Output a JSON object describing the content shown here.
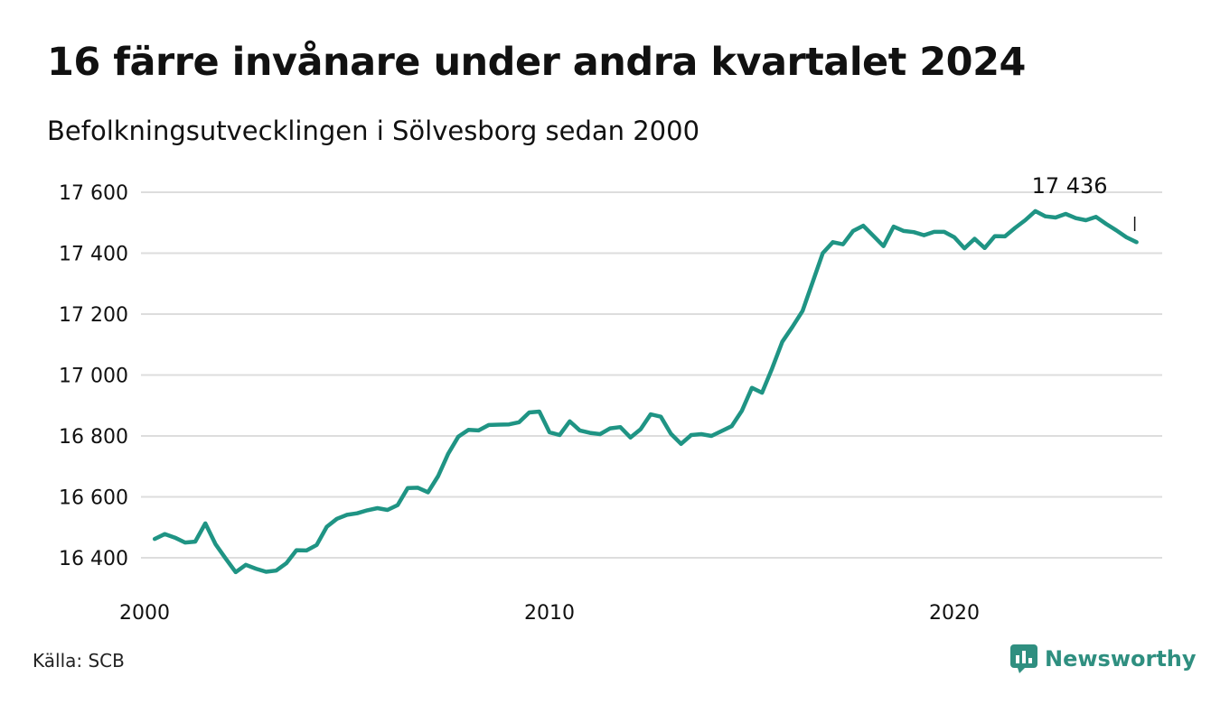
{
  "header": {
    "title": "16 färre invånare under andra kvartalet 2024",
    "subtitle": "Befolkningsutvecklingen i Sölvesborg sedan 2000"
  },
  "footer": {
    "source": "Källa: SCB",
    "brand": "Newsworthy"
  },
  "colors": {
    "line": "#1f9484",
    "grid": "#dddddd",
    "brand": "#2f8f80"
  },
  "chart_data": {
    "type": "line",
    "title": "16 färre invånare under andra kvartalet 2024",
    "subtitle": "Befolkningsutvecklingen i Sölvesborg sedan 2000",
    "xlim": [
      2000,
      2025
    ],
    "ylim": [
      16320,
      17620
    ],
    "x_ticks": [
      2000,
      2010,
      2020
    ],
    "x_tick_labels": [
      "2000",
      "2010",
      "2020"
    ],
    "y_ticks": [
      16400,
      16600,
      16800,
      17000,
      17200,
      17400,
      17600
    ],
    "y_tick_labels": [
      "16 400",
      "16 600",
      "16 800",
      "17 000",
      "17 200",
      "17 400",
      "17 600"
    ],
    "grid": true,
    "last_value_label": "17 436",
    "series": [
      {
        "x": [
          2000.25,
          2000.5,
          2000.75,
          2001.0,
          2001.25,
          2001.5,
          2001.75,
          2002.0,
          2002.25,
          2002.5,
          2002.75,
          2003.0,
          2003.25,
          2003.5,
          2003.75,
          2004.0,
          2004.25,
          2004.5,
          2004.75,
          2005.0,
          2005.25,
          2005.5,
          2005.75,
          2006.0,
          2006.25,
          2006.5,
          2006.75,
          2007.0,
          2007.25,
          2007.5,
          2007.75,
          2008.0,
          2008.25,
          2008.5,
          2008.75,
          2009.0,
          2009.25,
          2009.5,
          2009.75,
          2010.0,
          2010.25,
          2010.5,
          2010.75,
          2011.0,
          2011.25,
          2011.5,
          2011.75,
          2012.0,
          2012.25,
          2012.5,
          2012.75,
          2013.0,
          2013.25,
          2013.5,
          2013.75,
          2014.0,
          2014.25,
          2014.5,
          2014.75,
          2015.0,
          2015.25,
          2015.5,
          2015.75,
          2016.0,
          2016.25,
          2016.5,
          2016.75,
          2017.0,
          2017.25,
          2017.5,
          2017.75,
          2018.0,
          2018.25,
          2018.5,
          2018.75,
          2019.0,
          2019.25,
          2019.5,
          2019.75,
          2020.0,
          2020.25,
          2020.5,
          2020.75,
          2021.0,
          2021.25,
          2021.5,
          2021.75,
          2022.0,
          2022.25,
          2022.5,
          2022.75,
          2023.0,
          2023.25,
          2023.5,
          2023.75,
          2024.0,
          2024.25,
          2024.5
        ],
        "values": [
          16462,
          16478,
          16466,
          16450,
          16453,
          16513,
          16445,
          16398,
          16353,
          16377,
          16364,
          16354,
          16358,
          16382,
          16425,
          16424,
          16442,
          16502,
          16528,
          16541,
          16546,
          16556,
          16563,
          16557,
          16573,
          16629,
          16630,
          16615,
          16668,
          16742,
          16798,
          16820,
          16818,
          16836,
          16837,
          16838,
          16845,
          16877,
          16880,
          16812,
          16803,
          16848,
          16818,
          16810,
          16806,
          16825,
          16829,
          16795,
          16822,
          16871,
          16863,
          16807,
          16774,
          16803,
          16806,
          16800,
          16816,
          16832,
          16882,
          16958,
          16942,
          17022,
          17109,
          17158,
          17210,
          17305,
          17400,
          17436,
          17429,
          17473,
          17490,
          17457,
          17423,
          17487,
          17473,
          17469,
          17459,
          17470,
          17470,
          17452,
          17416,
          17447,
          17417,
          17456,
          17455,
          17483,
          17508,
          17538,
          17521,
          17517,
          17529,
          17515,
          17508,
          17519,
          17496,
          17475,
          17452,
          17436
        ]
      }
    ]
  }
}
